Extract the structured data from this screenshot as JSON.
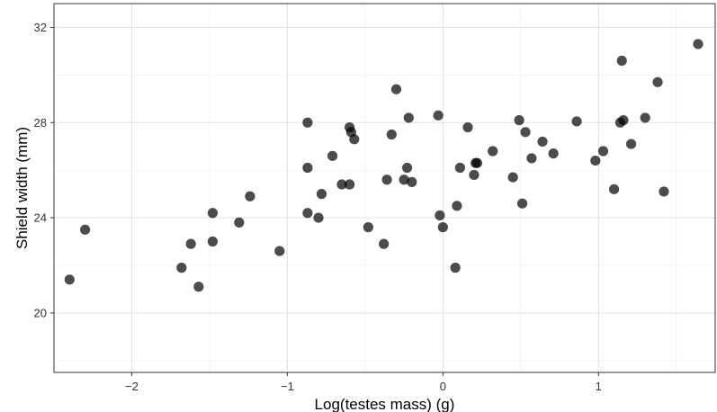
{
  "chart_data": {
    "type": "scatter",
    "xlabel": "Log(testes mass) (g)",
    "ylabel": "Shield width (mm)",
    "xlim": [
      -2.5,
      1.75
    ],
    "ylim": [
      17.5,
      33.0
    ],
    "x_ticks": [
      -2,
      -1,
      0,
      1
    ],
    "x_tick_labels": [
      "−2",
      "−1",
      "0",
      "1"
    ],
    "y_ticks": [
      20,
      24,
      28,
      32
    ],
    "y_tick_labels": [
      "20",
      "24",
      "28",
      "32"
    ],
    "grid": true,
    "point_color": "#000000",
    "point_opacity": 0.7,
    "points": [
      {
        "x": -2.4,
        "y": 21.4
      },
      {
        "x": -2.3,
        "y": 23.5
      },
      {
        "x": -1.68,
        "y": 21.9
      },
      {
        "x": -1.62,
        "y": 22.9
      },
      {
        "x": -1.57,
        "y": 21.1
      },
      {
        "x": -1.48,
        "y": 24.2
      },
      {
        "x": -1.48,
        "y": 23.0
      },
      {
        "x": -1.31,
        "y": 23.8
      },
      {
        "x": -1.24,
        "y": 24.9
      },
      {
        "x": -1.05,
        "y": 22.6
      },
      {
        "x": -0.87,
        "y": 28.0
      },
      {
        "x": -0.87,
        "y": 26.1
      },
      {
        "x": -0.87,
        "y": 24.2
      },
      {
        "x": -0.8,
        "y": 24.0
      },
      {
        "x": -0.78,
        "y": 25.0
      },
      {
        "x": -0.71,
        "y": 26.6
      },
      {
        "x": -0.65,
        "y": 25.4
      },
      {
        "x": -0.6,
        "y": 27.8
      },
      {
        "x": -0.59,
        "y": 27.6
      },
      {
        "x": -0.6,
        "y": 25.4
      },
      {
        "x": -0.57,
        "y": 27.3
      },
      {
        "x": -0.48,
        "y": 23.6
      },
      {
        "x": -0.38,
        "y": 22.9
      },
      {
        "x": -0.36,
        "y": 25.6
      },
      {
        "x": -0.33,
        "y": 27.5
      },
      {
        "x": -0.3,
        "y": 29.4
      },
      {
        "x": -0.25,
        "y": 25.6
      },
      {
        "x": -0.23,
        "y": 26.1
      },
      {
        "x": -0.22,
        "y": 28.2
      },
      {
        "x": -0.2,
        "y": 25.5
      },
      {
        "x": -0.03,
        "y": 28.3
      },
      {
        "x": -0.02,
        "y": 24.1
      },
      {
        "x": 0.0,
        "y": 23.6
      },
      {
        "x": 0.08,
        "y": 21.9
      },
      {
        "x": 0.09,
        "y": 24.5
      },
      {
        "x": 0.11,
        "y": 26.1
      },
      {
        "x": 0.16,
        "y": 27.8
      },
      {
        "x": 0.2,
        "y": 25.8
      },
      {
        "x": 0.21,
        "y": 26.3
      },
      {
        "x": 0.22,
        "y": 26.3
      },
      {
        "x": 0.32,
        "y": 26.8
      },
      {
        "x": 0.45,
        "y": 25.7
      },
      {
        "x": 0.49,
        "y": 28.1
      },
      {
        "x": 0.51,
        "y": 24.6
      },
      {
        "x": 0.53,
        "y": 27.6
      },
      {
        "x": 0.57,
        "y": 26.5
      },
      {
        "x": 0.64,
        "y": 27.2
      },
      {
        "x": 0.71,
        "y": 26.7
      },
      {
        "x": 0.86,
        "y": 28.05
      },
      {
        "x": 0.98,
        "y": 26.4
      },
      {
        "x": 1.03,
        "y": 26.8
      },
      {
        "x": 1.1,
        "y": 25.2
      },
      {
        "x": 1.14,
        "y": 28.0
      },
      {
        "x": 1.15,
        "y": 30.6
      },
      {
        "x": 1.16,
        "y": 28.1
      },
      {
        "x": 1.21,
        "y": 27.1
      },
      {
        "x": 1.3,
        "y": 28.2
      },
      {
        "x": 1.38,
        "y": 29.7
      },
      {
        "x": 1.42,
        "y": 25.1
      },
      {
        "x": 1.64,
        "y": 31.3
      }
    ]
  }
}
